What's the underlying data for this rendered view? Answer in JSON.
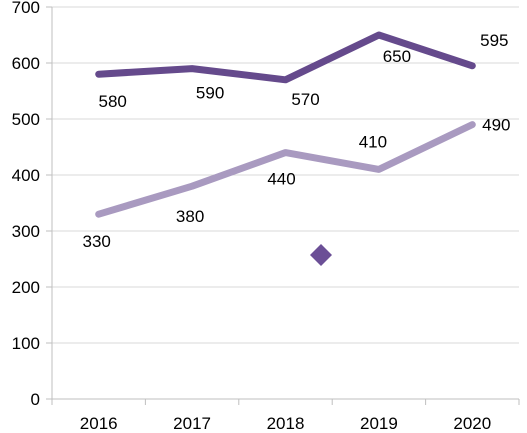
{
  "chart_data": {
    "type": "line",
    "title": "",
    "xlabel": "",
    "ylabel": "",
    "categories": [
      "2016",
      "2017",
      "2018",
      "2019",
      "2020"
    ],
    "ylim": [
      0,
      700
    ],
    "y_ticks": [
      "0",
      "100",
      "200",
      "300",
      "400",
      "500",
      "600",
      "700"
    ],
    "grid": true,
    "legend": "none",
    "series": [
      {
        "values": [
          580,
          590,
          570,
          650,
          595
        ],
        "labels": [
          "580",
          "590",
          "570",
          "650",
          "595"
        ],
        "color": "#654a8c"
      },
      {
        "values": [
          330,
          380,
          440,
          410,
          490
        ],
        "labels": [
          "330",
          "380",
          "440",
          "410",
          "490"
        ],
        "color": "#a99ac0"
      }
    ],
    "marker": {
      "shape": "diamond",
      "color": "#6b4f96"
    }
  }
}
